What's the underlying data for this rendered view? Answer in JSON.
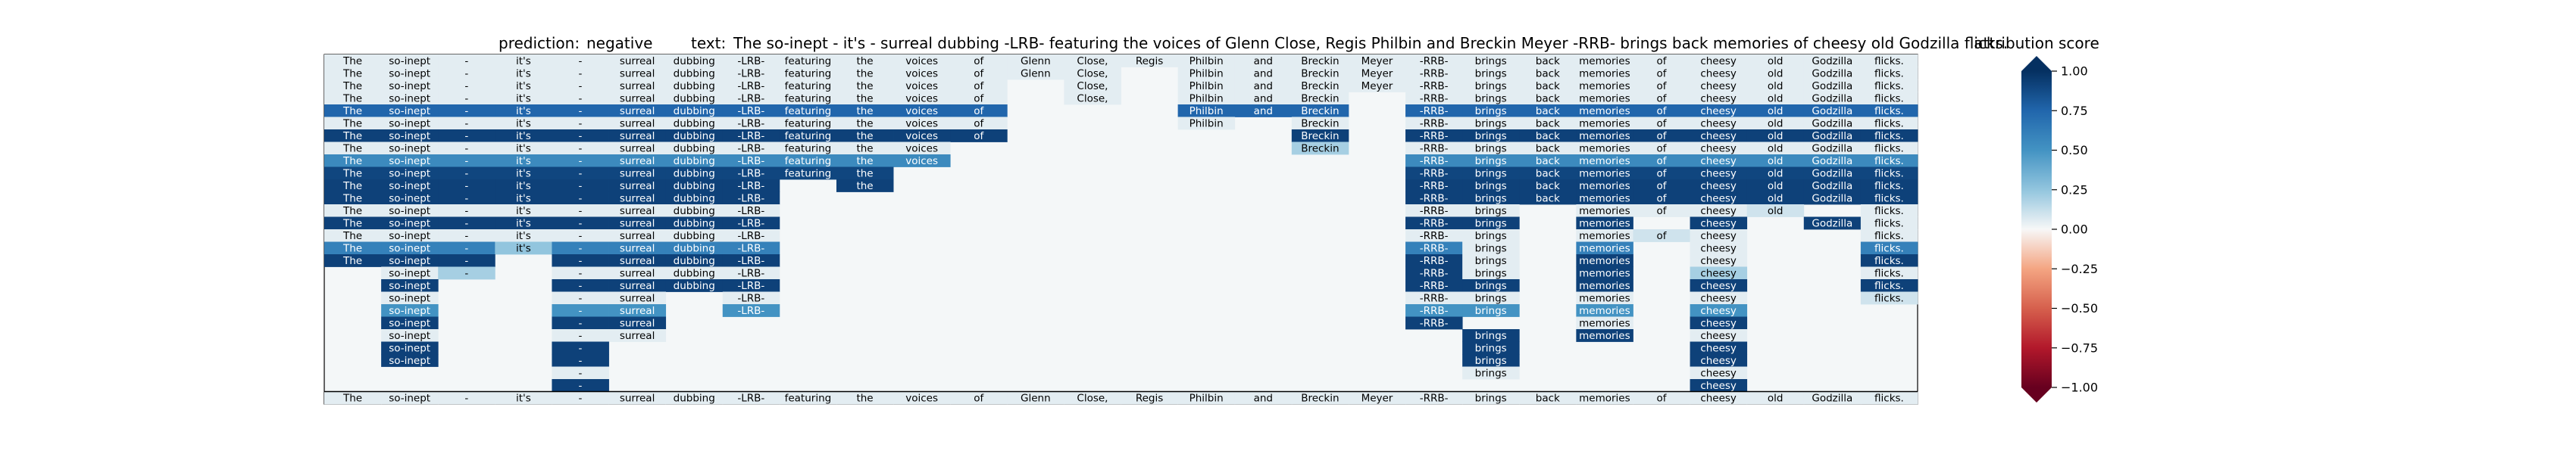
{
  "chart_data": {
    "type": "heatmap",
    "title": {
      "prediction_label": "prediction:",
      "prediction": "negative",
      "text_label": "text:",
      "text": "The so-inept - it's - surreal dubbing -LRB- featuring the voices of Glenn Close, Regis Philbin and Breckin Meyer -RRB- brings back memories of cheesy old Godzilla flicks."
    },
    "tokens": [
      "The",
      "so-inept",
      "-",
      "it's",
      "-",
      "surreal",
      "dubbing",
      "-LRB-",
      "featuring",
      "the",
      "voices",
      "of",
      "Glenn",
      "Close,",
      "Regis",
      "Philbin",
      "and",
      "Breckin",
      "Meyer",
      "-RRB-",
      "brings",
      "back",
      "memories",
      "of",
      "cheesy",
      "old",
      "Godzilla",
      "flicks."
    ],
    "rows": [
      [
        0.05,
        0.05,
        0.05,
        0.05,
        0.05,
        0.05,
        0.05,
        0.05,
        0.05,
        0.05,
        0.05,
        0.05,
        0.05,
        0.05,
        0.05,
        0.05,
        0.05,
        0.05,
        0.05,
        0.05,
        0.05,
        0.05,
        0.05,
        0.05,
        0.05,
        0.05,
        0.05,
        0.05
      ],
      [
        0.05,
        0.05,
        0.05,
        0.05,
        0.05,
        0.05,
        0.05,
        0.05,
        0.05,
        0.05,
        0.05,
        0.05,
        0.05,
        0.05,
        null,
        0.05,
        0.05,
        0.05,
        0.05,
        0.05,
        0.05,
        0.05,
        0.05,
        0.05,
        0.05,
        0.05,
        0.05,
        0.05
      ],
      [
        0.05,
        0.05,
        0.05,
        0.05,
        0.05,
        0.05,
        0.05,
        0.05,
        0.05,
        0.05,
        0.05,
        0.05,
        null,
        0.05,
        null,
        0.05,
        0.05,
        0.05,
        0.05,
        0.05,
        0.05,
        0.05,
        0.05,
        0.05,
        0.05,
        0.05,
        0.05,
        0.05
      ],
      [
        0.05,
        0.05,
        0.05,
        0.05,
        0.05,
        0.05,
        0.05,
        0.05,
        0.05,
        0.05,
        0.05,
        0.05,
        null,
        0.05,
        null,
        0.05,
        0.05,
        0.05,
        null,
        0.05,
        0.05,
        0.05,
        0.05,
        0.05,
        0.05,
        0.05,
        0.05,
        0.05
      ],
      [
        0.75,
        0.75,
        0.75,
        0.75,
        0.75,
        0.75,
        0.75,
        0.75,
        0.75,
        0.75,
        0.75,
        0.75,
        null,
        null,
        null,
        0.75,
        0.75,
        0.75,
        null,
        0.75,
        0.75,
        0.75,
        0.75,
        0.75,
        0.75,
        0.75,
        0.75,
        0.75
      ],
      [
        0.05,
        0.05,
        0.05,
        0.05,
        0.05,
        0.05,
        0.05,
        0.05,
        0.05,
        0.05,
        0.05,
        0.05,
        null,
        null,
        null,
        0.05,
        null,
        0.05,
        null,
        0.05,
        0.05,
        0.05,
        0.05,
        0.05,
        0.05,
        0.05,
        0.05,
        0.05
      ],
      [
        0.92,
        0.92,
        0.92,
        0.92,
        0.92,
        0.92,
        0.92,
        0.92,
        0.92,
        0.92,
        0.92,
        0.92,
        null,
        null,
        null,
        null,
        null,
        0.92,
        null,
        0.92,
        0.92,
        0.92,
        0.92,
        0.92,
        0.92,
        0.92,
        0.92,
        0.92
      ],
      [
        0.05,
        0.05,
        0.05,
        0.05,
        0.05,
        0.05,
        0.05,
        0.05,
        0.05,
        0.05,
        0.05,
        null,
        null,
        null,
        null,
        null,
        null,
        0.2,
        null,
        0.05,
        0.05,
        0.05,
        0.05,
        0.05,
        0.05,
        0.05,
        0.05,
        0.05
      ],
      [
        0.55,
        0.55,
        0.55,
        0.55,
        0.55,
        0.55,
        0.55,
        0.55,
        0.55,
        0.55,
        0.55,
        null,
        null,
        null,
        null,
        null,
        null,
        null,
        null,
        0.55,
        0.55,
        0.55,
        0.55,
        0.55,
        0.55,
        0.55,
        0.55,
        0.55
      ],
      [
        0.9,
        0.9,
        0.9,
        0.9,
        0.9,
        0.9,
        0.9,
        0.9,
        0.9,
        0.9,
        null,
        null,
        null,
        null,
        null,
        null,
        null,
        null,
        null,
        0.9,
        0.9,
        0.9,
        0.9,
        0.9,
        0.9,
        0.9,
        0.9,
        0.9
      ],
      [
        0.92,
        0.92,
        0.92,
        0.92,
        0.92,
        0.92,
        0.92,
        0.92,
        null,
        0.92,
        null,
        null,
        null,
        null,
        null,
        null,
        null,
        null,
        null,
        0.92,
        0.92,
        0.92,
        0.92,
        0.92,
        0.92,
        0.92,
        0.92,
        0.92
      ],
      [
        0.92,
        0.92,
        0.92,
        0.92,
        0.92,
        0.92,
        0.92,
        0.92,
        null,
        null,
        null,
        null,
        null,
        null,
        null,
        null,
        null,
        null,
        null,
        0.92,
        0.92,
        0.92,
        0.92,
        0.92,
        0.92,
        0.92,
        0.92,
        0.92
      ],
      [
        0.05,
        0.05,
        0.05,
        0.05,
        0.05,
        0.05,
        0.05,
        0.05,
        null,
        null,
        null,
        null,
        null,
        null,
        null,
        null,
        null,
        null,
        null,
        0.05,
        0.05,
        null,
        0.05,
        0.05,
        0.05,
        0.1,
        null,
        0.05
      ],
      [
        0.92,
        0.92,
        0.92,
        0.92,
        0.92,
        0.92,
        0.92,
        0.92,
        null,
        null,
        null,
        null,
        null,
        null,
        null,
        null,
        null,
        null,
        null,
        0.92,
        0.92,
        null,
        0.92,
        null,
        0.92,
        null,
        0.92,
        0.05
      ],
      [
        0.05,
        0.05,
        0.05,
        0.05,
        0.05,
        0.05,
        0.05,
        0.05,
        null,
        null,
        null,
        null,
        null,
        null,
        null,
        null,
        null,
        null,
        null,
        0.05,
        0.05,
        null,
        0.05,
        0.1,
        0.05,
        null,
        null,
        0.05
      ],
      [
        0.6,
        0.6,
        0.6,
        0.25,
        0.6,
        0.6,
        0.6,
        0.6,
        null,
        null,
        null,
        null,
        null,
        null,
        null,
        null,
        null,
        null,
        null,
        0.6,
        0.05,
        null,
        0.6,
        null,
        0.05,
        null,
        null,
        0.6
      ],
      [
        0.92,
        0.92,
        0.92,
        null,
        0.92,
        0.92,
        0.92,
        0.92,
        null,
        null,
        null,
        null,
        null,
        null,
        null,
        null,
        null,
        null,
        null,
        0.92,
        0.05,
        null,
        0.92,
        null,
        0.05,
        null,
        null,
        0.92
      ],
      [
        null,
        0.05,
        0.2,
        null,
        0.05,
        0.05,
        0.05,
        0.05,
        null,
        null,
        null,
        null,
        null,
        null,
        null,
        null,
        null,
        null,
        null,
        0.92,
        0.05,
        null,
        0.92,
        null,
        0.2,
        null,
        null,
        0.05
      ],
      [
        null,
        0.92,
        null,
        null,
        0.92,
        0.92,
        0.92,
        0.92,
        null,
        null,
        null,
        null,
        null,
        null,
        null,
        null,
        null,
        null,
        null,
        0.92,
        0.92,
        null,
        0.92,
        null,
        0.92,
        null,
        null,
        0.92
      ],
      [
        null,
        0.05,
        null,
        null,
        0.05,
        0.05,
        null,
        0.05,
        null,
        null,
        null,
        null,
        null,
        null,
        null,
        null,
        null,
        null,
        null,
        0.05,
        0.05,
        null,
        0.05,
        null,
        0.05,
        null,
        null,
        0.1
      ],
      [
        null,
        0.5,
        null,
        null,
        0.5,
        0.5,
        null,
        0.5,
        null,
        null,
        null,
        null,
        null,
        null,
        null,
        null,
        null,
        null,
        null,
        0.5,
        0.5,
        null,
        0.5,
        null,
        0.5,
        null,
        null,
        null
      ],
      [
        null,
        0.92,
        null,
        null,
        0.92,
        0.92,
        null,
        null,
        null,
        null,
        null,
        null,
        null,
        null,
        null,
        null,
        null,
        null,
        null,
        0.92,
        null,
        null,
        0.05,
        null,
        0.92,
        null,
        null,
        null
      ],
      [
        null,
        0.05,
        null,
        null,
        0.05,
        0.05,
        null,
        null,
        null,
        null,
        null,
        null,
        null,
        null,
        null,
        null,
        null,
        null,
        null,
        null,
        0.92,
        null,
        0.92,
        null,
        0.05,
        null,
        null,
        null
      ],
      [
        null,
        0.92,
        null,
        null,
        0.92,
        null,
        null,
        null,
        null,
        null,
        null,
        null,
        null,
        null,
        null,
        null,
        null,
        null,
        null,
        null,
        0.92,
        null,
        null,
        null,
        0.92,
        null,
        null,
        null
      ],
      [
        null,
        0.92,
        null,
        null,
        0.92,
        null,
        null,
        null,
        null,
        null,
        null,
        null,
        null,
        null,
        null,
        null,
        null,
        null,
        null,
        null,
        0.92,
        null,
        null,
        null,
        0.92,
        null,
        null,
        null
      ],
      [
        null,
        null,
        null,
        null,
        0.05,
        null,
        null,
        null,
        null,
        null,
        null,
        null,
        null,
        null,
        null,
        null,
        null,
        null,
        null,
        null,
        0.05,
        null,
        null,
        null,
        0.05,
        null,
        null,
        null
      ],
      [
        null,
        null,
        null,
        null,
        0.92,
        null,
        null,
        null,
        null,
        null,
        null,
        null,
        null,
        null,
        null,
        null,
        null,
        null,
        null,
        null,
        null,
        null,
        null,
        null,
        0.92,
        null,
        null,
        null
      ],
      [
        0.05,
        0.05,
        0.05,
        0.05,
        0.05,
        0.05,
        0.05,
        0.05,
        0.05,
        0.05,
        0.05,
        0.05,
        0.05,
        0.05,
        0.05,
        0.05,
        0.05,
        0.05,
        0.05,
        0.05,
        0.05,
        0.05,
        0.05,
        0.05,
        0.05,
        0.05,
        0.05,
        0.05
      ]
    ],
    "colorbar": {
      "label": "attribution score",
      "range": [
        -1.0,
        1.0
      ],
      "ticks": [
        "1.00",
        "0.75",
        "0.50",
        "0.25",
        "0.00",
        "−0.25",
        "−0.50",
        "−0.75",
        "−1.00"
      ],
      "tick_values": [
        1.0,
        0.75,
        0.5,
        0.25,
        0.0,
        -0.25,
        -0.5,
        -0.75,
        -1.0
      ],
      "colormap": "RdBu",
      "extend": "both"
    }
  }
}
